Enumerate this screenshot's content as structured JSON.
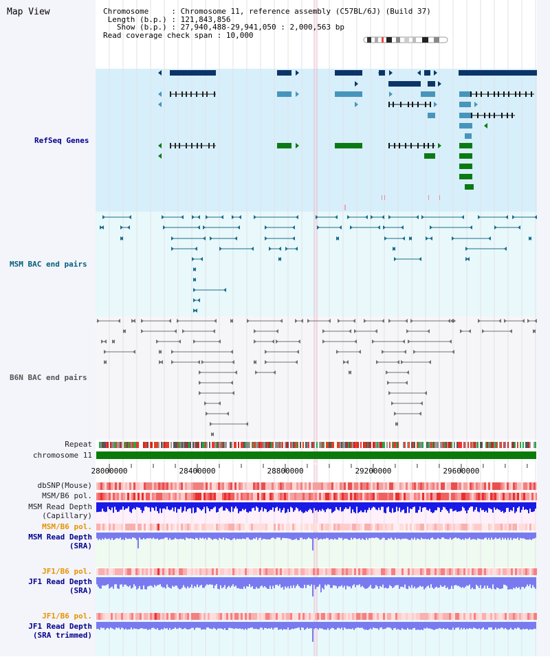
{
  "header": {
    "title": "Map View",
    "chromosome_key": "Chromosome",
    "chromosome_val": ": Chromosome 11, reference assembly (C57BL/6J) (Build 37)",
    "length_key": "Length (b.p.)",
    "length_val": ": 121,843,856",
    "show_key": "Show (b.p.)",
    "show_val": ": 27,940,488-29,941,050 : 2,000,563 bp",
    "coverage_key": "Read coverage check span",
    "coverage_val": ": 10,000"
  },
  "tracks": {
    "refseq": "RefSeq Genes",
    "msm_bac": "MSM BAC end pairs",
    "b6n_bac": "B6N BAC end pairs",
    "repeat": "Repeat",
    "chromosome": "chromosome 11",
    "dbsnp": "dbSNP(Mouse)",
    "msm_b6_pol": "MSM/B6 pol.",
    "msm_depth_cap_1": "MSM Read Depth",
    "msm_depth_cap_2": "(Capillary)",
    "msm_b6_pol_2": "MSM/B6 pol.",
    "msm_depth_sra_1": "MSM Read Depth",
    "msm_depth_sra_2": "(SRA)",
    "jf1_b6_pol": "JF1/B6 pol.",
    "jf1_depth_sra_1": "JF1 Read Depth",
    "jf1_depth_sra_2": "(SRA)",
    "jf1_b6_pol_2": "JF1/B6 pol.",
    "jf1_depth_trim_1": "JF1 Read Depth",
    "jf1_depth_trim_2": "(SRA trimmed)"
  },
  "axis": {
    "ticks": [
      {
        "label": "28000000",
        "pos": 28000000
      },
      {
        "label": "28400000",
        "pos": 28400000
      },
      {
        "label": "28800000",
        "pos": 28800000
      },
      {
        "label": "29200000",
        "pos": 29200000
      },
      {
        "label": "29600000",
        "pos": 29600000
      }
    ],
    "start": 27940488,
    "end": 29941050
  },
  "colors": {
    "refseq_bg": "#d7effa",
    "msm_bg": "#e8f8fb",
    "b6n_bg": "#f6f6f9",
    "refseq_dark": "#0c3566",
    "refseq_light": "#4795bb",
    "refseq_green": "#0c7a14",
    "msm_bac": "#1a6c8a",
    "b6n_bac": "#707070",
    "chromosome": "#0b7a0b",
    "depth_blue": "#1a1ae6",
    "depth_light": "#7a7af0"
  }
}
